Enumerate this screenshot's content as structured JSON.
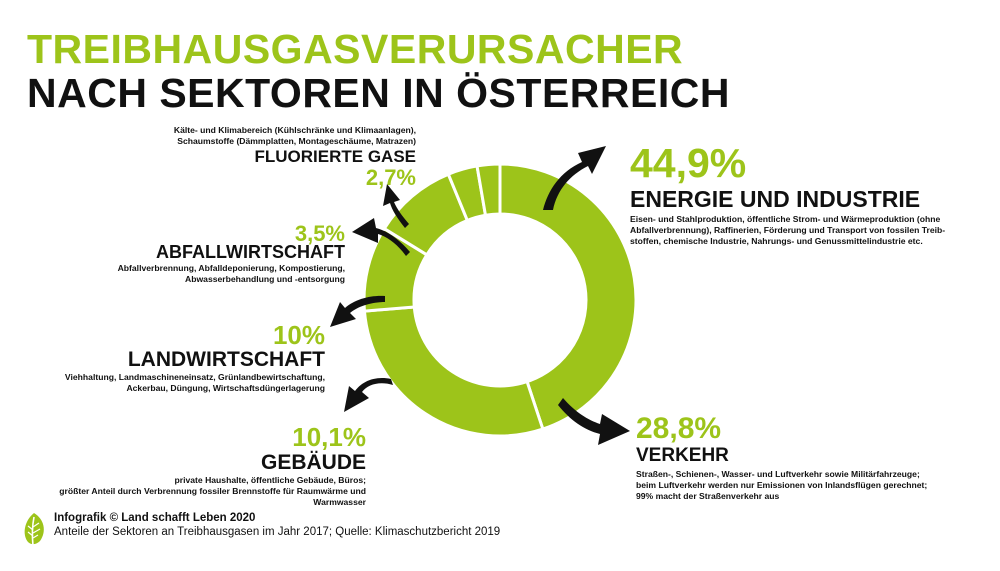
{
  "title": {
    "line1": "TREIBHAUSGASVERURSACHER",
    "line2": "NACH SEKTOREN IN ÖSTERREICH"
  },
  "colors": {
    "accent": "#9dc41a",
    "text": "#111111",
    "divider": "#ffffff"
  },
  "chart_data": {
    "type": "pie",
    "donut": true,
    "unit": "%",
    "slices": [
      {
        "label": "ENERGIE UND INDUSTRIE",
        "value": 44.9,
        "value_label": "44,9%",
        "description": [
          "Eisen- und Stahlproduktion, öffentliche Strom- und Wärmeproduktion (ohne",
          "Abfallverbrennung), Raffinerien, Förderung und Transport von fossilen Treib-",
          "stoffen, chemische Industrie, Nahrungs- und Genussmittelindustrie etc."
        ]
      },
      {
        "label": "VERKEHR",
        "value": 28.8,
        "value_label": "28,8%",
        "description": [
          "Straßen-, Schienen-, Wasser- und Luftverkehr sowie Militärfahrzeuge;",
          "beim Luftverkehr werden nur Emissionen von Inlandsflügen gerechnet;",
          "99% macht der Straßenverkehr aus"
        ]
      },
      {
        "label": "GEBÄUDE",
        "value": 10.1,
        "value_label": "10,1%",
        "description": [
          "private Haushalte, öffentliche Gebäude, Büros;",
          "größter Anteil durch Verbrennung fossiler Brennstoffe für Raumwärme und",
          "Warmwasser"
        ]
      },
      {
        "label": "LANDWIRTSCHAFT",
        "value": 10,
        "value_label": "10%",
        "description": [
          "Viehhaltung, Landmaschineneinsatz, Grünlandbewirtschaftung,",
          "Ackerbau, Düngung, Wirtschaftsdüngerlagerung"
        ]
      },
      {
        "label": "ABFALLWIRTSCHAFT",
        "value": 3.5,
        "value_label": "3,5%",
        "description": [
          "Abfallverbrennung, Abfalldeponierung, Kompostierung,",
          "Abwasserbehandlung und -entsorgung"
        ]
      },
      {
        "label": "FLUORIERTE GASE",
        "value": 2.7,
        "value_label": "2,7%",
        "description": [
          "Kälte- und Klimabereich (Kühlschränke und Klimaanlagen),",
          "Schaumstoffe (Dämmplatten, Montageschäume, Matrazen)"
        ]
      }
    ]
  },
  "footer": {
    "credit": "Infografik © Land schafft Leben 2020",
    "source": "Anteile der Sektoren an Treibhausgasen im Jahr 2017; Quelle: Klimaschutzbericht 2019"
  },
  "icons": {
    "logo": "leaf-icon",
    "pointer": "curved-arrow-icon"
  }
}
